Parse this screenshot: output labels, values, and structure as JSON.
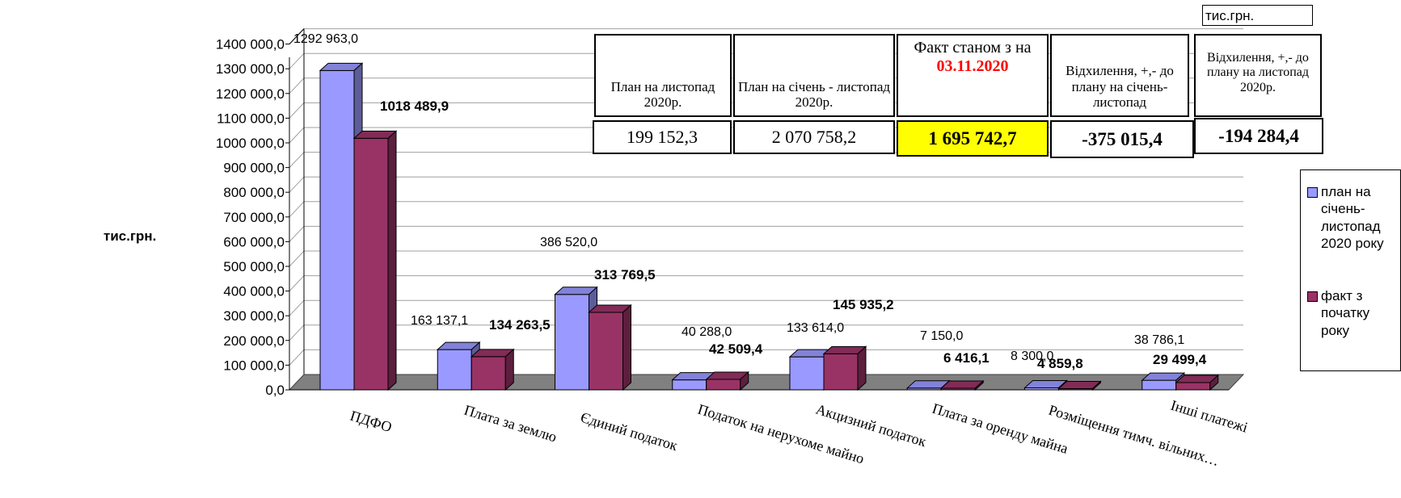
{
  "unit_label": "тис.грн.",
  "chart_data": {
    "type": "bar",
    "categories": [
      "ПДФО",
      "Плата за землю",
      "Єдиний податок",
      "Податок на нерухоме майно",
      "Акцизний податок",
      "Плата за оренду майна",
      "Розміщення тимч. вільних…",
      "Інші платежі"
    ],
    "series": [
      {
        "name": "план на січень-листопад 2020 року",
        "color": "#9999ff",
        "values": [
          1292963.0,
          163137.1,
          386520.0,
          40288.0,
          133614.0,
          7150.0,
          8300.0,
          38786.1
        ],
        "labels": [
          "1292 963,0",
          "163 137,1",
          "386 520,0",
          "40 288,0",
          "133 614,0",
          "7 150,0",
          "8 300,0",
          "38 786,1"
        ]
      },
      {
        "name": "факт з початку року",
        "color": "#993366",
        "values": [
          1018489.9,
          134263.5,
          313769.5,
          42509.4,
          145935.2,
          6416.1,
          4859.8,
          29499.4
        ],
        "labels": [
          "1018 489,9",
          "134 263,5",
          "313 769,5",
          "42 509,4",
          "145 935,2",
          "6 416,1",
          "4 859,8",
          "29 499,4"
        ]
      }
    ],
    "y_ticks": [
      "0,0",
      "100 000,0",
      "200 000,0",
      "300 000,0",
      "400 000,0",
      "500 000,0",
      "600 000,0",
      "700 000,0",
      "800 000,0",
      "900 000,0",
      "1000 000,0",
      "1100 000,0",
      "1200 000,0",
      "1300 000,0",
      "1400 000,0"
    ],
    "ylim": [
      0,
      1400000
    ],
    "grid": true,
    "legend": "right"
  },
  "summary_table": {
    "unit": "тис.грн.",
    "columns": [
      {
        "header": "План на листопад 2020р.",
        "value": "199 152,3"
      },
      {
        "header": "План на січень - листопад 2020р.",
        "value": "2 070 758,2"
      },
      {
        "header": "Факт станом з на ",
        "date": "03.11.2020",
        "value": "1 695 742,7",
        "highlight": "#ffff00"
      },
      {
        "header": "Відхилення, +,- до плану на січень-листопад",
        "value": "-375 015,4"
      },
      {
        "header": "Відхилення, +,- до плану на листопад 2020р.",
        "value": "-194 284,4"
      }
    ]
  }
}
